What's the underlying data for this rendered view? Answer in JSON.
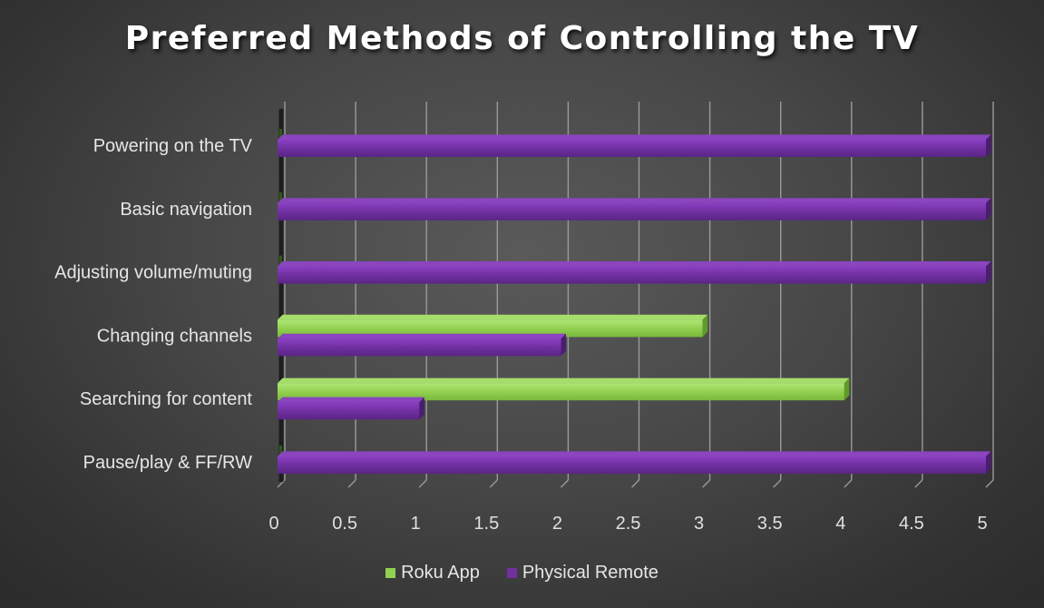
{
  "chart_data": {
    "type": "bar",
    "orientation": "horizontal",
    "title": "Preferred Methods of Controlling the TV",
    "categories": [
      "Powering on the TV",
      "Basic navigation",
      "Adjusting volume/muting",
      "Changing channels",
      "Searching for content",
      "Pause/play & FF/RW"
    ],
    "series": [
      {
        "name": "Roku App",
        "color": "#92d050",
        "values": [
          0,
          0,
          0,
          3,
          4,
          0
        ]
      },
      {
        "name": "Physical Remote",
        "color": "#7030a0",
        "values": [
          5,
          5,
          5,
          2,
          1,
          5
        ]
      }
    ],
    "xlim": [
      0,
      5
    ],
    "x_ticks": [
      "0",
      "0.5",
      "1",
      "1.5",
      "2",
      "2.5",
      "3",
      "3.5",
      "4",
      "4.5",
      "5"
    ],
    "grid": true,
    "legend_position": "bottom"
  }
}
